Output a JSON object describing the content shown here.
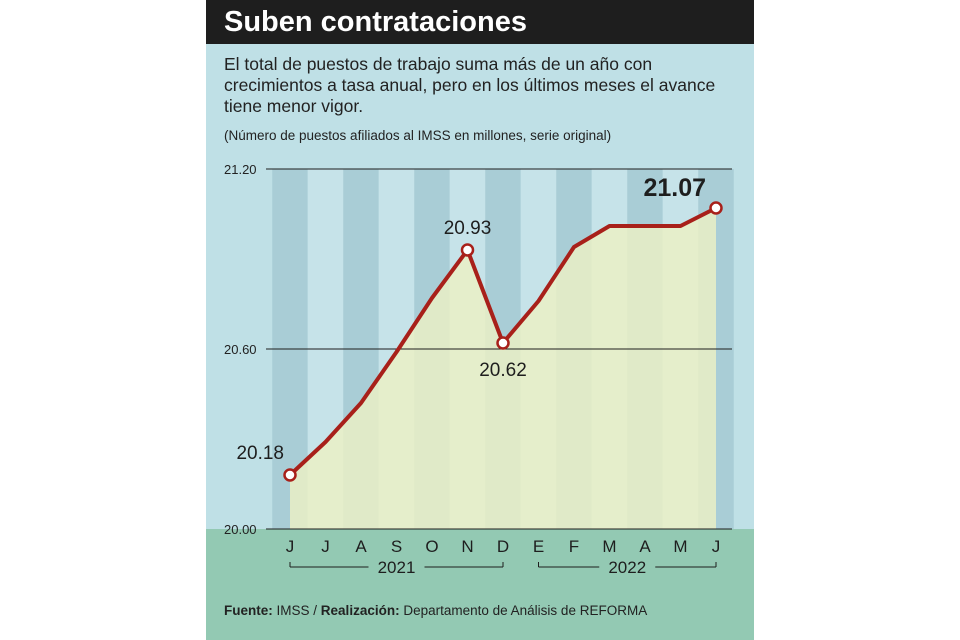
{
  "header": {
    "title": "Suben contrataciones",
    "subtitle": "El total de puestos de trabajo suma más de un año con crecimientos a tasa anual, pero en los últimos meses el avance tiene menor vigor.",
    "units_note": "(Número de puestos afiliados al IMSS en millones, serie original)"
  },
  "footer": {
    "source_label": "Fuente:",
    "source_value": "IMSS",
    "separator": " / ",
    "credit_label": "Realización:",
    "credit_value": "Departamento de Análisis de REFORMA"
  },
  "colors": {
    "line": "#a8201a",
    "fill": "#ecf0c4",
    "band_dark": "#a9cdd6",
    "band_light": "#c6e3e9",
    "ground": "#93c9b3"
  },
  "chart_data": {
    "type": "area",
    "title": "Suben contrataciones",
    "xlabel": "",
    "ylabel": "Número de puestos afiliados al IMSS en millones",
    "categories": [
      "J",
      "J",
      "A",
      "S",
      "O",
      "N",
      "D",
      "E",
      "F",
      "M",
      "A",
      "M",
      "J"
    ],
    "years": [
      {
        "label": "2021",
        "from": 0,
        "to": 6
      },
      {
        "label": "2022",
        "from": 7,
        "to": 12
      }
    ],
    "series": [
      {
        "name": "Puestos afiliados al IMSS",
        "values": [
          20.18,
          20.29,
          20.42,
          20.59,
          20.77,
          20.93,
          20.62,
          20.76,
          20.94,
          21.01,
          21.01,
          21.01,
          21.07
        ]
      }
    ],
    "ylim": [
      20.0,
      21.2
    ],
    "yticks": [
      {
        "value": 20.0,
        "label": "20.00"
      },
      {
        "value": 20.6,
        "label": "20.60"
      },
      {
        "value": 21.2,
        "label": "21.20"
      }
    ],
    "highlights": [
      {
        "index": 0,
        "label": "20.18",
        "pos": "above-left",
        "big": false
      },
      {
        "index": 5,
        "label": "20.93",
        "pos": "above",
        "big": false
      },
      {
        "index": 6,
        "label": "20.62",
        "pos": "below",
        "big": false
      },
      {
        "index": 12,
        "label": "21.07",
        "pos": "above-left",
        "big": true
      }
    ]
  }
}
